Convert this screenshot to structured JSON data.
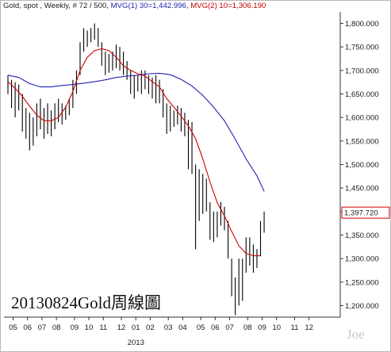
{
  "header": {
    "prefix": "Gold, spot , Weekly, # 72 / 500, ",
    "ma1": "MVG(1) 30=1,442.996",
    "sep": ", ",
    "ma2": "MVG(2) 10=1,306.190"
  },
  "caption": "20130824Gold周線圖",
  "watermark": "Joe",
  "colors": {
    "ma30": "#1f1fb0",
    "ma10": "#d00000",
    "bars": "#000000",
    "last_box": "#d00000"
  },
  "chart_data": {
    "type": "ohlc",
    "title": "",
    "xlabel": "",
    "ylabel": "",
    "ylim": [
      1180,
      1820
    ],
    "y_ticks": [
      1200,
      1250,
      1300,
      1350,
      1400,
      1450,
      1500,
      1550,
      1600,
      1650,
      1700,
      1750,
      1800
    ],
    "y_tick_labels": [
      "1,200.000",
      "1,250.000",
      "1,300.000",
      "1,350.000",
      "1,400.000",
      "1,450.000",
      "1,500.000",
      "1,550.000",
      "1,600.000",
      "1,650.000",
      "1,700.000",
      "1,750.000",
      "1,800.000"
    ],
    "x_ticks": [
      {
        "i": 1,
        "label": "05"
      },
      {
        "i": 5,
        "label": "06"
      },
      {
        "i": 9,
        "label": "07"
      },
      {
        "i": 13,
        "label": "08"
      },
      {
        "i": 18,
        "label": "09"
      },
      {
        "i": 22,
        "label": "10"
      },
      {
        "i": 26,
        "label": "11"
      },
      {
        "i": 31,
        "label": "12"
      },
      {
        "i": 35,
        "label": "01"
      },
      {
        "i": 39,
        "label": "02"
      },
      {
        "i": 44,
        "label": "03"
      },
      {
        "i": 48,
        "label": "04"
      },
      {
        "i": 53,
        "label": "05"
      },
      {
        "i": 57,
        "label": "06"
      },
      {
        "i": 61,
        "label": "07"
      },
      {
        "i": 66,
        "label": "08"
      },
      {
        "i": 70,
        "label": "09"
      },
      {
        "i": 74,
        "label": "10"
      },
      {
        "i": 79,
        "label": "11"
      },
      {
        "i": 83,
        "label": "12"
      }
    ],
    "x_year_label": {
      "i": 35,
      "label": "2013"
    },
    "last_price_label": "1,397.720",
    "last_price": 1397.72,
    "series": [
      {
        "name": "MVG(1) 30",
        "role": "ma30",
        "values": [
          [
            0,
            1690
          ],
          [
            3,
            1685
          ],
          [
            6,
            1672
          ],
          [
            9,
            1665
          ],
          [
            12,
            1665
          ],
          [
            15,
            1668
          ],
          [
            18,
            1670
          ],
          [
            21,
            1673
          ],
          [
            24,
            1676
          ],
          [
            27,
            1680
          ],
          [
            30,
            1685
          ],
          [
            33,
            1688
          ],
          [
            36,
            1690
          ],
          [
            39,
            1693
          ],
          [
            42,
            1694
          ],
          [
            45,
            1691
          ],
          [
            48,
            1681
          ],
          [
            51,
            1667
          ],
          [
            54,
            1647
          ],
          [
            57,
            1622
          ],
          [
            60,
            1593
          ],
          [
            63,
            1554
          ],
          [
            66,
            1512
          ],
          [
            69,
            1476
          ],
          [
            71,
            1443
          ]
        ]
      },
      {
        "name": "MVG(2) 10",
        "role": "ma10",
        "values": [
          [
            0,
            1676
          ],
          [
            2,
            1662
          ],
          [
            4,
            1645
          ],
          [
            6,
            1624
          ],
          [
            8,
            1605
          ],
          [
            10,
            1593
          ],
          [
            12,
            1593
          ],
          [
            14,
            1600
          ],
          [
            16,
            1622
          ],
          [
            18,
            1655
          ],
          [
            20,
            1700
          ],
          [
            22,
            1728
          ],
          [
            24,
            1742
          ],
          [
            26,
            1746
          ],
          [
            28,
            1742
          ],
          [
            30,
            1728
          ],
          [
            32,
            1710
          ],
          [
            34,
            1700
          ],
          [
            36,
            1693
          ],
          [
            38,
            1688
          ],
          [
            40,
            1676
          ],
          [
            42,
            1665
          ],
          [
            44,
            1640
          ],
          [
            46,
            1622
          ],
          [
            48,
            1603
          ],
          [
            50,
            1582
          ],
          [
            52,
            1555
          ],
          [
            54,
            1512
          ],
          [
            56,
            1463
          ],
          [
            58,
            1419
          ],
          [
            60,
            1391
          ],
          [
            62,
            1358
          ],
          [
            64,
            1327
          ],
          [
            66,
            1311
          ],
          [
            68,
            1306
          ],
          [
            70,
            1306
          ]
        ]
      }
    ],
    "ohlc": [
      {
        "i": 0,
        "h": 1690,
        "l": 1650
      },
      {
        "i": 1,
        "h": 1680,
        "l": 1620
      },
      {
        "i": 2,
        "h": 1675,
        "l": 1600
      },
      {
        "i": 3,
        "h": 1670,
        "l": 1615
      },
      {
        "i": 4,
        "h": 1650,
        "l": 1570
      },
      {
        "i": 5,
        "h": 1620,
        "l": 1555
      },
      {
        "i": 6,
        "h": 1610,
        "l": 1530
      },
      {
        "i": 7,
        "h": 1600,
        "l": 1540
      },
      {
        "i": 8,
        "h": 1630,
        "l": 1560
      },
      {
        "i": 9,
        "h": 1640,
        "l": 1575
      },
      {
        "i": 10,
        "h": 1620,
        "l": 1555
      },
      {
        "i": 11,
        "h": 1630,
        "l": 1565
      },
      {
        "i": 12,
        "h": 1615,
        "l": 1560
      },
      {
        "i": 13,
        "h": 1630,
        "l": 1575
      },
      {
        "i": 14,
        "h": 1640,
        "l": 1590
      },
      {
        "i": 15,
        "h": 1630,
        "l": 1585
      },
      {
        "i": 16,
        "h": 1625,
        "l": 1595
      },
      {
        "i": 17,
        "h": 1640,
        "l": 1605
      },
      {
        "i": 18,
        "h": 1680,
        "l": 1620
      },
      {
        "i": 19,
        "h": 1700,
        "l": 1650
      },
      {
        "i": 20,
        "h": 1760,
        "l": 1690
      },
      {
        "i": 21,
        "h": 1790,
        "l": 1740
      },
      {
        "i": 22,
        "h": 1785,
        "l": 1750
      },
      {
        "i": 23,
        "h": 1790,
        "l": 1760
      },
      {
        "i": 24,
        "h": 1800,
        "l": 1765
      },
      {
        "i": 25,
        "h": 1790,
        "l": 1750
      },
      {
        "i": 26,
        "h": 1760,
        "l": 1710
      },
      {
        "i": 27,
        "h": 1740,
        "l": 1690
      },
      {
        "i": 28,
        "h": 1735,
        "l": 1695
      },
      {
        "i": 29,
        "h": 1740,
        "l": 1700
      },
      {
        "i": 30,
        "h": 1755,
        "l": 1705
      },
      {
        "i": 31,
        "h": 1750,
        "l": 1700
      },
      {
        "i": 32,
        "h": 1740,
        "l": 1690
      },
      {
        "i": 33,
        "h": 1720,
        "l": 1680
      },
      {
        "i": 34,
        "h": 1700,
        "l": 1650
      },
      {
        "i": 35,
        "h": 1690,
        "l": 1640
      },
      {
        "i": 36,
        "h": 1690,
        "l": 1655
      },
      {
        "i": 37,
        "h": 1700,
        "l": 1650
      },
      {
        "i": 38,
        "h": 1700,
        "l": 1660
      },
      {
        "i": 39,
        "h": 1690,
        "l": 1650
      },
      {
        "i": 40,
        "h": 1685,
        "l": 1640
      },
      {
        "i": 41,
        "h": 1690,
        "l": 1630
      },
      {
        "i": 42,
        "h": 1680,
        "l": 1630
      },
      {
        "i": 43,
        "h": 1660,
        "l": 1600
      },
      {
        "i": 44,
        "h": 1630,
        "l": 1565
      },
      {
        "i": 45,
        "h": 1625,
        "l": 1570
      },
      {
        "i": 46,
        "h": 1615,
        "l": 1580
      },
      {
        "i": 47,
        "h": 1625,
        "l": 1585
      },
      {
        "i": 48,
        "h": 1620,
        "l": 1570
      },
      {
        "i": 49,
        "h": 1610,
        "l": 1560
      },
      {
        "i": 50,
        "h": 1595,
        "l": 1490
      },
      {
        "i": 51,
        "h": 1590,
        "l": 1480
      },
      {
        "i": 52,
        "h": 1500,
        "l": 1320
      },
      {
        "i": 53,
        "h": 1490,
        "l": 1380
      },
      {
        "i": 54,
        "h": 1480,
        "l": 1395
      },
      {
        "i": 55,
        "h": 1470,
        "l": 1400
      },
      {
        "i": 56,
        "h": 1420,
        "l": 1340
      },
      {
        "i": 57,
        "h": 1400,
        "l": 1335
      },
      {
        "i": 58,
        "h": 1400,
        "l": 1345
      },
      {
        "i": 59,
        "h": 1420,
        "l": 1370
      },
      {
        "i": 60,
        "h": 1410,
        "l": 1360
      },
      {
        "i": 61,
        "h": 1380,
        "l": 1300
      },
      {
        "i": 62,
        "h": 1300,
        "l": 1220
      },
      {
        "i": 63,
        "h": 1260,
        "l": 1180
      },
      {
        "i": 64,
        "h": 1300,
        "l": 1200
      },
      {
        "i": 65,
        "h": 1300,
        "l": 1210
      },
      {
        "i": 66,
        "h": 1345,
        "l": 1270
      },
      {
        "i": 67,
        "h": 1345,
        "l": 1285
      },
      {
        "i": 68,
        "h": 1330,
        "l": 1270
      },
      {
        "i": 69,
        "h": 1320,
        "l": 1280
      },
      {
        "i": 70,
        "h": 1380,
        "l": 1305
      },
      {
        "i": 71,
        "h": 1400,
        "l": 1355
      }
    ]
  }
}
